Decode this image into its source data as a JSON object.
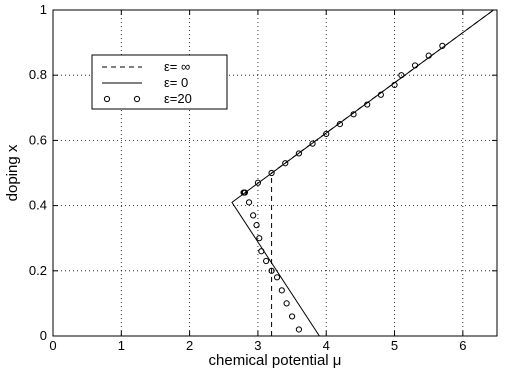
{
  "chart_data": {
    "type": "line",
    "xlabel": "chemical potential μ",
    "ylabel": "doping x",
    "xlim": [
      0,
      6.5
    ],
    "ylim": [
      0,
      1
    ],
    "xticks": [
      "0",
      "1",
      "2",
      "3",
      "4",
      "5",
      "6"
    ],
    "yticks": [
      "0",
      "0.2",
      "0.4",
      "0.6",
      "0.8",
      "1"
    ],
    "grid": true,
    "grid_style": "dotted",
    "legend_position": "top-left",
    "series": [
      {
        "name": "ε= ∞",
        "style": "dashed",
        "x": [
          3.2,
          3.2,
          6.45
        ],
        "y": [
          0.0,
          0.5,
          1.0
        ]
      },
      {
        "name": "ε= 0",
        "style": "solid",
        "x": [
          3.9,
          2.62,
          6.45
        ],
        "y": [
          0.0,
          0.41,
          1.0
        ]
      },
      {
        "name": "ε=20",
        "style": "circles",
        "x": [
          3.6,
          3.5,
          3.42,
          3.35,
          3.28,
          3.2,
          3.12,
          3.05,
          3.02,
          2.98,
          2.93,
          2.87,
          2.81,
          2.79,
          2.8,
          3.0,
          3.2,
          3.4,
          3.6,
          3.8,
          4.0,
          4.2,
          4.4,
          4.6,
          4.8,
          5.0,
          5.1,
          5.3,
          5.5,
          5.7
        ],
        "y": [
          0.02,
          0.06,
          0.1,
          0.14,
          0.18,
          0.2,
          0.23,
          0.26,
          0.3,
          0.34,
          0.37,
          0.41,
          0.44,
          0.44,
          0.44,
          0.47,
          0.5,
          0.53,
          0.56,
          0.59,
          0.62,
          0.65,
          0.68,
          0.71,
          0.74,
          0.77,
          0.8,
          0.83,
          0.86,
          0.89
        ]
      }
    ]
  }
}
